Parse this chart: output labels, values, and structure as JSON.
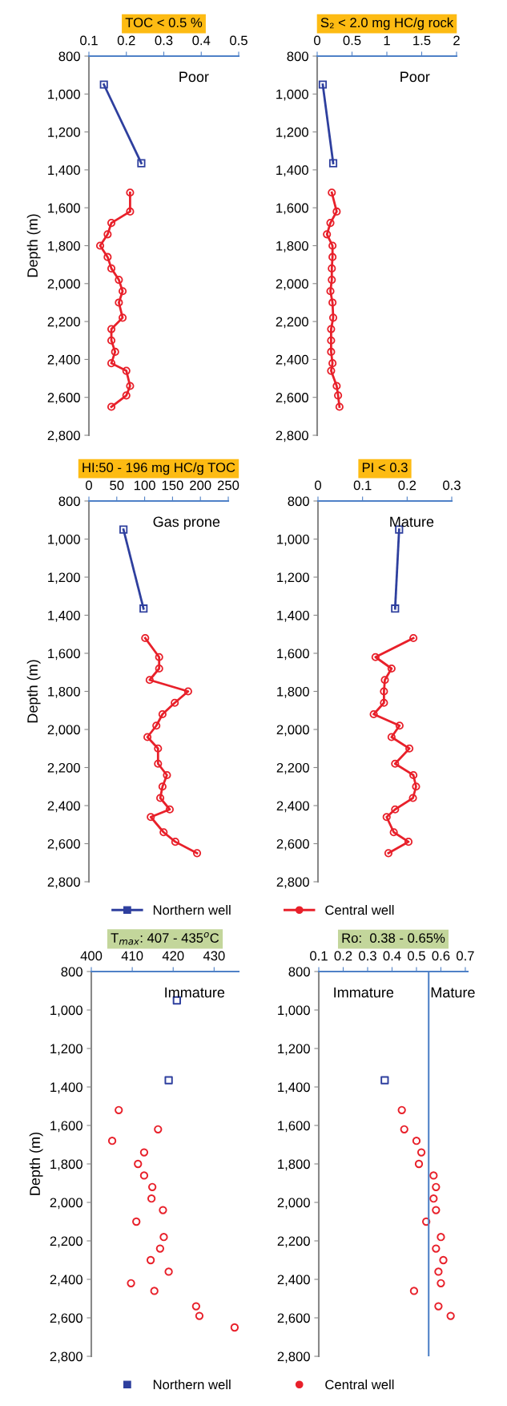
{
  "chart_data": [
    {
      "type": "line",
      "title": "TOC < 0.5 %",
      "ylabel": "Depth (m)",
      "annotations": [
        "Poor"
      ],
      "xlim": [
        0.1,
        0.5
      ],
      "xticks": [
        0.1,
        0.2,
        0.3,
        0.4,
        0.5
      ],
      "ylim": [
        2800,
        800
      ],
      "yticks": [
        800,
        {
          "value": 1000,
          "label": "1,000"
        },
        {
          "value": 1200,
          "label": "1,200"
        },
        {
          "value": 1400,
          "label": "1,400"
        },
        {
          "value": 1600,
          "label": "1,600"
        },
        {
          "value": 1800,
          "label": "1,800"
        },
        {
          "value": 2000,
          "label": "2,000"
        },
        {
          "value": 2200,
          "label": "2,200"
        },
        {
          "value": 2400,
          "label": "2,400"
        },
        {
          "value": 2600,
          "label": "2,600"
        },
        {
          "value": 2800,
          "label": "2,800"
        }
      ],
      "series": [
        {
          "color": "#2e3f9e",
          "marker": "square",
          "x": [
            0.14,
            0.24
          ],
          "values": [
            950,
            1365
          ]
        },
        {
          "color": "#e8202a",
          "marker": "circle",
          "x": [
            0.21,
            0.21,
            0.16,
            0.15,
            0.13,
            0.15,
            0.16,
            0.18,
            0.19,
            0.18,
            0.19,
            0.16,
            0.16,
            0.17,
            0.16,
            0.2,
            0.21,
            0.2,
            0.16
          ],
          "values": [
            1520,
            1620,
            1680,
            1740,
            1800,
            1860,
            1920,
            1980,
            2040,
            2100,
            2180,
            2240,
            2300,
            2360,
            2420,
            2460,
            2540,
            2590,
            2650
          ]
        }
      ]
    },
    {
      "type": "line",
      "title": "S₂ < 2.0 mg HC/g rock",
      "annotations": [
        "Poor"
      ],
      "xlim": [
        0,
        2
      ],
      "xticks": [
        0,
        0.5,
        1,
        1.5,
        2
      ],
      "ylim": [
        2800,
        800
      ],
      "yticks": [
        800,
        {
          "value": 1000,
          "label": "1,000"
        },
        {
          "value": 1200,
          "label": "1,200"
        },
        {
          "value": 1400,
          "label": "1,400"
        },
        {
          "value": 1600,
          "label": "1,600"
        },
        {
          "value": 1800,
          "label": "1,800"
        },
        {
          "value": 2000,
          "label": "2,000"
        },
        {
          "value": 2200,
          "label": "2,200"
        },
        {
          "value": 2400,
          "label": "2,400"
        },
        {
          "value": 2600,
          "label": "2,600"
        },
        {
          "value": 2800,
          "label": "2,800"
        }
      ],
      "series": [
        {
          "color": "#2e3f9e",
          "marker": "square",
          "x": [
            0.08,
            0.23
          ],
          "values": [
            950,
            1365
          ]
        },
        {
          "color": "#e8202a",
          "marker": "circle",
          "x": [
            0.21,
            0.28,
            0.19,
            0.14,
            0.22,
            0.22,
            0.21,
            0.21,
            0.19,
            0.22,
            0.23,
            0.2,
            0.2,
            0.2,
            0.22,
            0.2,
            0.28,
            0.3,
            0.32
          ],
          "values": [
            1520,
            1620,
            1680,
            1740,
            1800,
            1860,
            1920,
            1980,
            2040,
            2100,
            2180,
            2240,
            2300,
            2360,
            2420,
            2460,
            2540,
            2590,
            2650
          ]
        }
      ]
    },
    {
      "type": "line",
      "title": "HI:50 - 196 mg HC/g TOC",
      "ylabel": "Depth (m)",
      "annotations": [
        "Gas prone"
      ],
      "legend": "bottom",
      "xlim": [
        0,
        250
      ],
      "xticks": [
        0,
        50,
        100,
        150,
        200,
        250
      ],
      "ylim": [
        2800,
        800
      ],
      "yticks": [
        800,
        {
          "value": 1000,
          "label": "1,000"
        },
        {
          "value": 1200,
          "label": "1,200"
        },
        {
          "value": 1400,
          "label": "1,400"
        },
        {
          "value": 1600,
          "label": "1,600"
        },
        {
          "value": 1800,
          "label": "1,800"
        },
        {
          "value": 2000,
          "label": "2,000"
        },
        {
          "value": 2200,
          "label": "2,200"
        },
        {
          "value": 2400,
          "label": "2,400"
        },
        {
          "value": 2600,
          "label": "2,600"
        },
        {
          "value": 2800,
          "label": "2,800"
        }
      ],
      "series": [
        {
          "name": "Northern well",
          "color": "#2e3f9e",
          "marker": "square",
          "x": [
            62,
            98
          ],
          "values": [
            950,
            1365
          ]
        },
        {
          "name": "Central well",
          "color": "#e8202a",
          "marker": "circle",
          "x": [
            101,
            126,
            126,
            109,
            178,
            154,
            132,
            121,
            105,
            124,
            124,
            140,
            132,
            128,
            145,
            111,
            134,
            155,
            194
          ],
          "values": [
            1520,
            1620,
            1680,
            1740,
            1800,
            1860,
            1920,
            1980,
            2040,
            2100,
            2180,
            2240,
            2300,
            2360,
            2420,
            2460,
            2540,
            2590,
            2650
          ]
        }
      ]
    },
    {
      "type": "line",
      "title": "PI < 0.3",
      "annotations": [
        "Mature"
      ],
      "xlim": [
        0,
        0.3
      ],
      "xticks": [
        0,
        0.1,
        0.2,
        0.3
      ],
      "ylim": [
        2800,
        800
      ],
      "yticks": [
        800,
        {
          "value": 1000,
          "label": "1,000"
        },
        {
          "value": 1200,
          "label": "1,200"
        },
        {
          "value": 1400,
          "label": "1,400"
        },
        {
          "value": 1600,
          "label": "1,600"
        },
        {
          "value": 1800,
          "label": "1,800"
        },
        {
          "value": 2000,
          "label": "2,000"
        },
        {
          "value": 2200,
          "label": "2,200"
        },
        {
          "value": 2400,
          "label": "2,400"
        },
        {
          "value": 2600,
          "label": "2,600"
        },
        {
          "value": 2800,
          "label": "2,800"
        }
      ],
      "series": [
        {
          "color": "#2e3f9e",
          "marker": "square",
          "x": [
            0.182,
            0.173
          ],
          "values": [
            950,
            1365
          ]
        },
        {
          "color": "#e8202a",
          "marker": "circle",
          "x": [
            0.214,
            0.129,
            0.165,
            0.15,
            0.148,
            0.148,
            0.125,
            0.183,
            0.165,
            0.205,
            0.173,
            0.214,
            0.22,
            0.213,
            0.173,
            0.154,
            0.17,
            0.203,
            0.158
          ],
          "values": [
            1520,
            1620,
            1680,
            1740,
            1800,
            1860,
            1920,
            1980,
            2040,
            2100,
            2180,
            2240,
            2300,
            2360,
            2420,
            2460,
            2540,
            2590,
            2650
          ]
        }
      ]
    },
    {
      "type": "scatter",
      "title": "T$_{max}$: 407 - 435$^{o}$C",
      "ylabel": "Depth (m)",
      "annotations": [
        "Immature"
      ],
      "legend": "bottom",
      "xlim": [
        400,
        436
      ],
      "xticks": [
        400,
        410,
        420,
        430
      ],
      "ylim": [
        2800,
        800
      ],
      "yticks": [
        800,
        {
          "value": 1000,
          "label": "1,000"
        },
        {
          "value": 1200,
          "label": "1,200"
        },
        {
          "value": 1400,
          "label": "1,400"
        },
        {
          "value": 1600,
          "label": "1,600"
        },
        {
          "value": 1800,
          "label": "1,800"
        },
        {
          "value": 2000,
          "label": "2,000"
        },
        {
          "value": 2200,
          "label": "2,200"
        },
        {
          "value": 2400,
          "label": "2,400"
        },
        {
          "value": 2600,
          "label": "2,600"
        },
        {
          "value": 2800,
          "label": "2,800"
        }
      ],
      "series": [
        {
          "name": "Northern well",
          "color": "#2e3f9e",
          "marker": "square",
          "x": [
            420.9,
            418.9
          ],
          "values": [
            950,
            1365
          ]
        },
        {
          "name": "Central well",
          "color": "#e8202a",
          "marker": "circle",
          "x": [
            406.7,
            416.3,
            405.1,
            412.9,
            411.4,
            412.9,
            414.9,
            414.7,
            417.5,
            411.0,
            417.7,
            416.8,
            414.5,
            418.9,
            409.7,
            415.4,
            425.6,
            426.4,
            435.0
          ],
          "values": [
            1520,
            1620,
            1680,
            1740,
            1800,
            1860,
            1920,
            1980,
            2040,
            2100,
            2180,
            2240,
            2300,
            2360,
            2420,
            2460,
            2540,
            2590,
            2650
          ]
        }
      ]
    },
    {
      "type": "scatter",
      "title": "Ro:  0.38 - 0.65%",
      "annotations": [
        "Immature",
        "Mature"
      ],
      "xlim": [
        0.1,
        0.71
      ],
      "xticks": [
        0.1,
        0.2,
        0.3,
        0.4,
        0.5,
        0.6,
        0.7
      ],
      "ylim": [
        2800,
        800
      ],
      "yticks": [
        800,
        {
          "value": 1000,
          "label": "1,000"
        },
        {
          "value": 1200,
          "label": "1,200"
        },
        {
          "value": 1400,
          "label": "1,400"
        },
        {
          "value": 1600,
          "label": "1,600"
        },
        {
          "value": 1800,
          "label": "1,800"
        },
        {
          "value": 2000,
          "label": "2,000"
        },
        {
          "value": 2200,
          "label": "2,200"
        },
        {
          "value": 2400,
          "label": "2,400"
        },
        {
          "value": 2600,
          "label": "2,600"
        },
        {
          "value": 2800,
          "label": "2,800"
        }
      ],
      "ref_lines": [
        {
          "axis": "x",
          "value": 0.55,
          "color": "#4f81c7"
        }
      ],
      "series": [
        {
          "color": "#2e3f9e",
          "marker": "square",
          "x": [
            0.37
          ],
          "values": [
            1365
          ]
        },
        {
          "color": "#e8202a",
          "marker": "circle",
          "x": [
            0.44,
            0.45,
            0.5,
            0.52,
            0.51,
            0.57,
            0.58,
            0.57,
            0.58,
            0.54,
            0.6,
            0.58,
            0.61,
            0.59,
            0.6,
            0.49,
            0.59,
            0.64
          ],
          "values": [
            1520,
            1620,
            1680,
            1740,
            1800,
            1860,
            1920,
            1980,
            2040,
            2100,
            2180,
            2240,
            2300,
            2360,
            2420,
            2460,
            2540,
            2590
          ]
        }
      ]
    }
  ]
}
